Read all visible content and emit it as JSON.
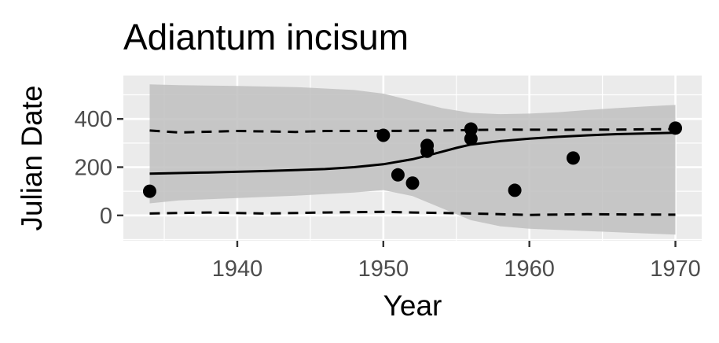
{
  "chart_data": {
    "type": "scatter",
    "title": "Adiantum incisum",
    "xlabel": "Year",
    "ylabel": "Julian Date",
    "xlim": [
      1932.2,
      1971.8
    ],
    "ylim": [
      -105,
      580
    ],
    "x_ticks": [
      1940,
      1950,
      1960,
      1970
    ],
    "x_tick_labels": [
      "1940",
      "1950",
      "1960",
      "1970"
    ],
    "y_ticks": [
      0,
      200,
      400
    ],
    "y_tick_labels": [
      "0",
      "200",
      "400"
    ],
    "grid": true,
    "legend": "none",
    "colors": {
      "panel_background": "#ebebeb",
      "grid": "#ffffff",
      "ribbon": "#bfbfbf",
      "points": "#000000",
      "fit_line": "#000000",
      "tick_text": "#4d4d4d"
    },
    "points": [
      {
        "x": 1934,
        "y": 100
      },
      {
        "x": 1950,
        "y": 332
      },
      {
        "x": 1951,
        "y": 168
      },
      {
        "x": 1952,
        "y": 134
      },
      {
        "x": 1953,
        "y": 290
      },
      {
        "x": 1953,
        "y": 266
      },
      {
        "x": 1956,
        "y": 358
      },
      {
        "x": 1956,
        "y": 318
      },
      {
        "x": 1959,
        "y": 104
      },
      {
        "x": 1963,
        "y": 238
      },
      {
        "x": 1970,
        "y": 362
      }
    ],
    "fit_line": {
      "x": [
        1934,
        1938,
        1942,
        1946,
        1948,
        1950,
        1952,
        1953,
        1954,
        1955,
        1956,
        1958,
        1960,
        1962,
        1964,
        1966,
        1968,
        1970
      ],
      "y": [
        173,
        178,
        184,
        192,
        200,
        212,
        233,
        248,
        264,
        280,
        294,
        308,
        318,
        326,
        332,
        337,
        340,
        343
      ]
    },
    "confidence_band": {
      "x": [
        1934,
        1936,
        1940,
        1944,
        1948,
        1950,
        1952,
        1954,
        1956,
        1958,
        1960,
        1962,
        1964,
        1966,
        1968,
        1970
      ],
      "upper": [
        543,
        540,
        537,
        532,
        520,
        505,
        475,
        445,
        425,
        420,
        422,
        428,
        437,
        445,
        452,
        458
      ],
      "lower": [
        50,
        62,
        72,
        82,
        95,
        105,
        80,
        30,
        -20,
        -45,
        -55,
        -60,
        -65,
        -70,
        -75,
        -80
      ]
    },
    "dashed_upper": {
      "x": [
        1934,
        1936,
        1940,
        1944,
        1946,
        1950,
        1954,
        1958,
        1962,
        1966,
        1970
      ],
      "y": [
        352,
        344,
        350,
        346,
        350,
        350,
        352,
        356,
        355,
        356,
        358
      ]
    },
    "dashed_lower": {
      "x": [
        1934,
        1938,
        1942,
        1946,
        1950,
        1952,
        1956,
        1960,
        1964,
        1970
      ],
      "y": [
        8,
        12,
        8,
        12,
        15,
        12,
        8,
        2,
        5,
        3
      ]
    }
  }
}
